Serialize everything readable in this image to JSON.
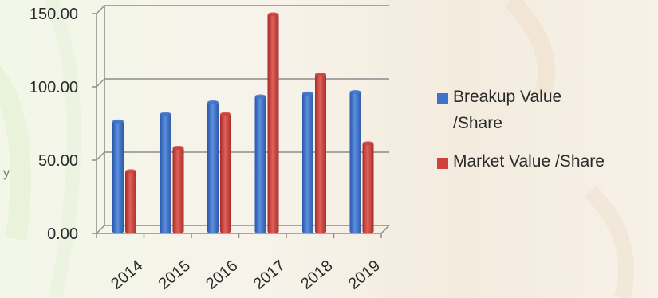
{
  "colors": {
    "breakup": "#3f73c9",
    "market": "#d0403d",
    "grid": "#8c8c8c",
    "background": "#f4f2e8"
  },
  "chart_data": {
    "type": "bar",
    "categories": [
      "2014",
      "2015",
      "2016",
      "2017",
      "2018",
      "2019"
    ],
    "series": [
      {
        "name": "Breakup Value /Share",
        "values": [
          77,
          82,
          90,
          94,
          96,
          97
        ]
      },
      {
        "name": "Market Value /Share",
        "values": [
          43,
          59,
          82,
          150,
          109,
          62
        ]
      }
    ],
    "yticks": [
      "0.00",
      "50.00",
      "100.00",
      "150.00"
    ],
    "ylim": [
      0,
      150
    ],
    "grid": true,
    "legend_position": "right",
    "title": "",
    "xlabel": "",
    "ylabel": ""
  },
  "legend": {
    "items": [
      {
        "label_line1": "Breakup Value",
        "label_line2": "/Share"
      },
      {
        "label_line1": "Market Value /Share",
        "label_line2": ""
      }
    ]
  }
}
